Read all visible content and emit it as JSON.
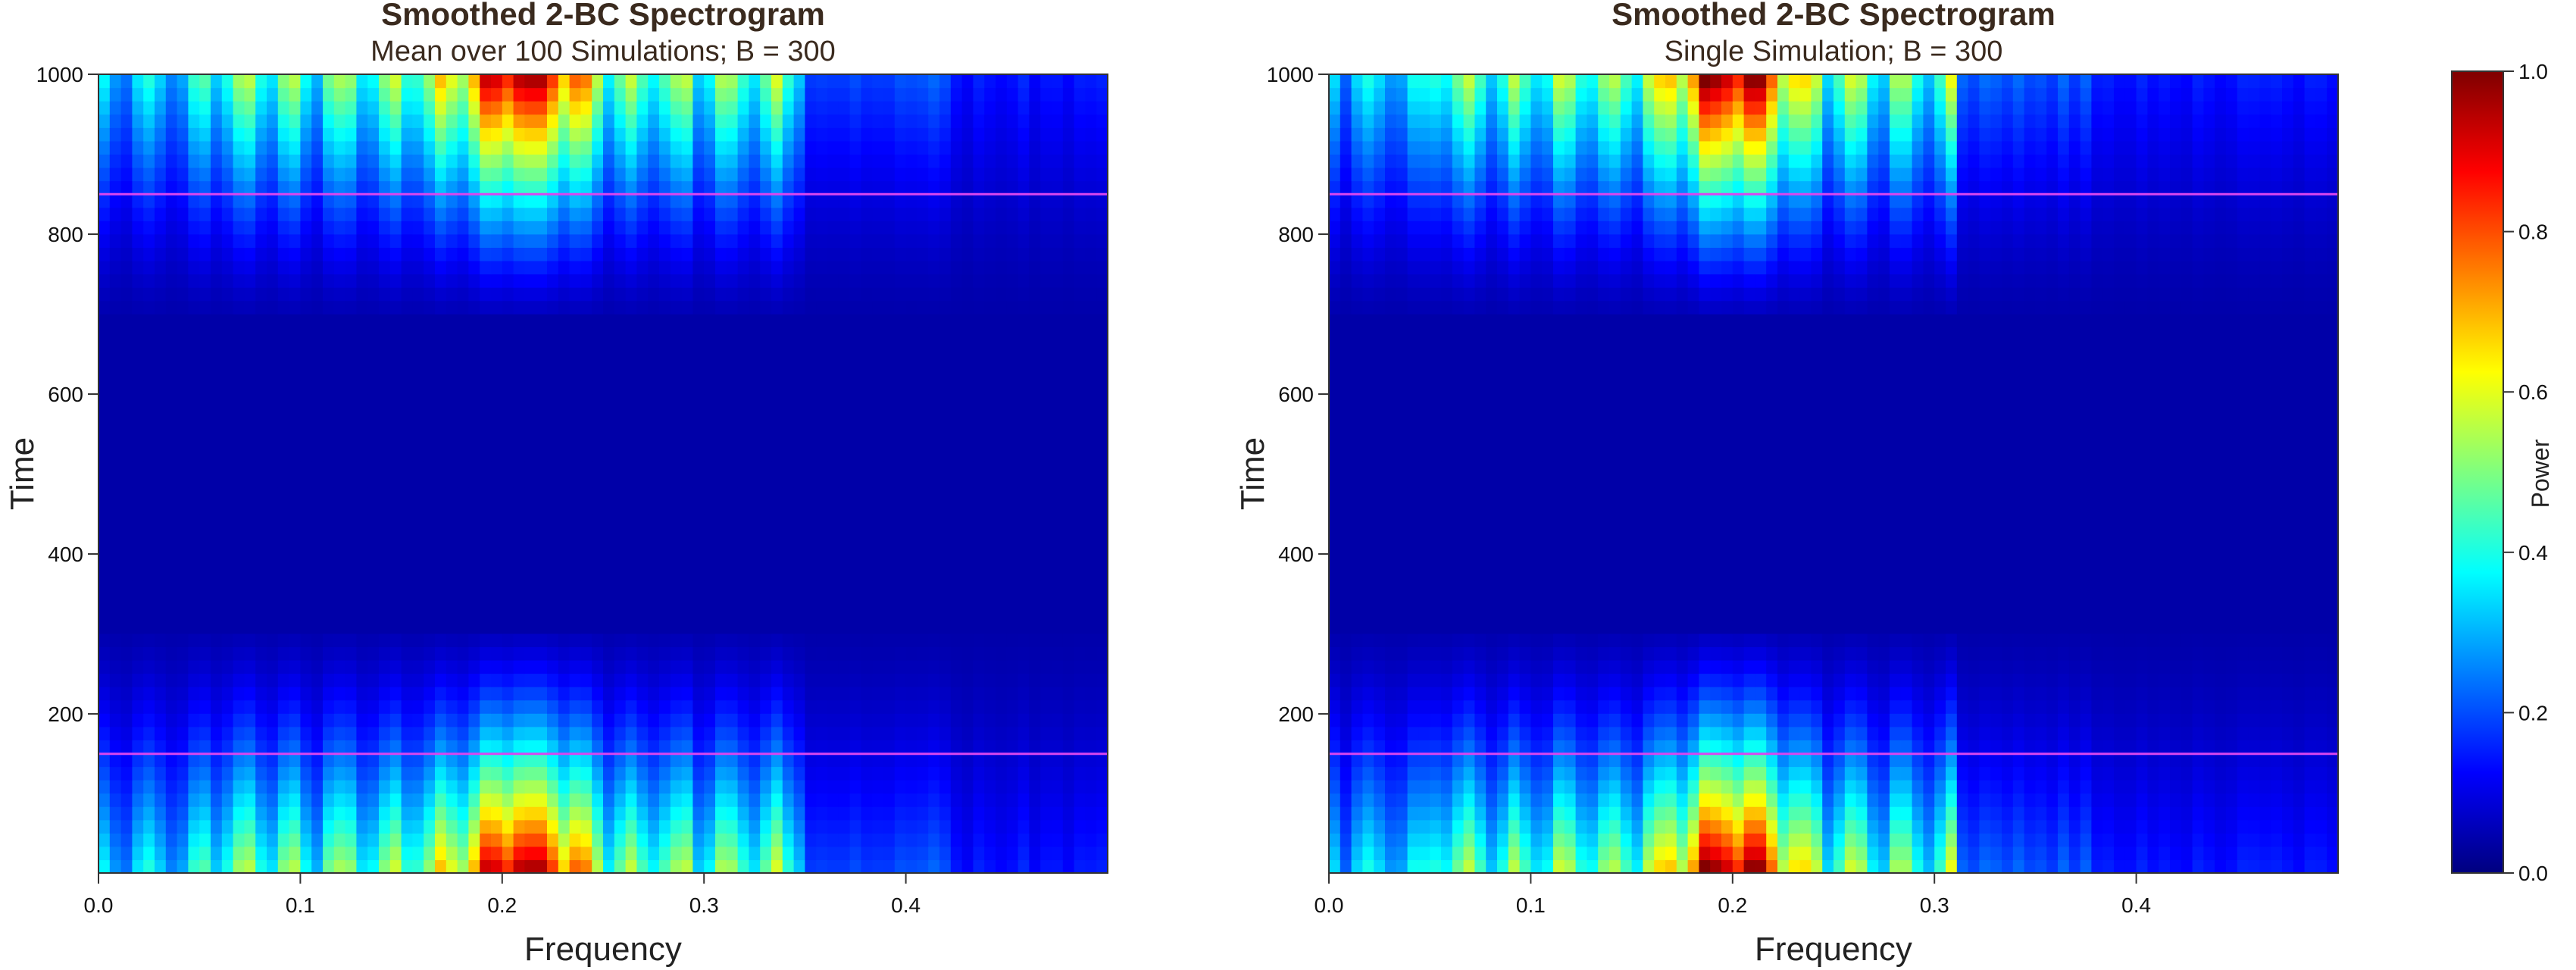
{
  "chart_data": [
    {
      "type": "heatmap",
      "title": "Smoothed 2-BC Spectrogram",
      "subtitle": "Mean over 100 Simulations; B = 300",
      "xlabel": "Frequency",
      "ylabel": "Time",
      "xlim": [
        0,
        0.5
      ],
      "ylim": [
        1,
        1000
      ],
      "x_ticks": [
        "0.0",
        "0.1",
        "0.2",
        "0.3",
        "0.4"
      ],
      "x_tick_values": [
        0,
        0.1,
        0.2,
        0.3,
        0.4
      ],
      "y_ticks": [
        "200",
        "400",
        "600",
        "800",
        "1000"
      ],
      "y_tick_values": [
        200,
        400,
        600,
        800,
        1000
      ],
      "reference_lines": [
        {
          "axis": "y",
          "value": 150,
          "color": "#d946ef"
        },
        {
          "axis": "y",
          "value": 850,
          "color": "#d946ef"
        }
      ],
      "bursts": [
        {
          "t_start": 0,
          "t_end": 300,
          "f_start": 0.0,
          "f_end": 0.35
        },
        {
          "t_start": 700,
          "t_end": 1000,
          "f_start": 0.0,
          "f_end": 0.35
        }
      ],
      "peak_frequency": 0.21,
      "peak_power": 0.95,
      "seed": 3
    },
    {
      "type": "heatmap",
      "title": "Smoothed 2-BC Spectrogram",
      "subtitle": "Single Simulation; B = 300",
      "xlabel": "Frequency",
      "ylabel": "Time",
      "xlim": [
        0,
        0.5
      ],
      "ylim": [
        1,
        1000
      ],
      "x_ticks": [
        "0.0",
        "0.1",
        "0.2",
        "0.3",
        "0.4"
      ],
      "x_tick_values": [
        0,
        0.1,
        0.2,
        0.3,
        0.4
      ],
      "y_ticks": [
        "200",
        "400",
        "600",
        "800",
        "1000"
      ],
      "y_tick_values": [
        200,
        400,
        600,
        800,
        1000
      ],
      "reference_lines": [
        {
          "axis": "y",
          "value": 150,
          "color": "#d946ef"
        },
        {
          "axis": "y",
          "value": 850,
          "color": "#d946ef"
        }
      ],
      "bursts": [
        {
          "t_start": 0,
          "t_end": 300,
          "f_start": 0.0,
          "f_end": 0.31
        },
        {
          "t_start": 700,
          "t_end": 1000,
          "f_start": 0.0,
          "f_end": 0.31
        }
      ],
      "peak_frequency": 0.2,
      "peak_power": 1.0,
      "seed": 11
    }
  ],
  "colorbar": {
    "label": "Power",
    "min": 0,
    "max": 1,
    "ticks": [
      "0.0",
      "0.2",
      "0.4",
      "0.6",
      "0.8",
      "1.0"
    ],
    "tick_values": [
      0,
      0.2,
      0.4,
      0.6,
      0.8,
      1.0
    ],
    "colors": [
      "#00007f",
      "#0000ff",
      "#007fff",
      "#00ffff",
      "#7fff7f",
      "#ffff00",
      "#ff7f00",
      "#ff0000",
      "#7f0000"
    ]
  }
}
